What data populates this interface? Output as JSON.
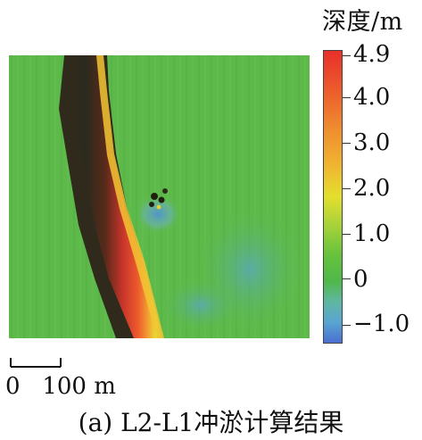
{
  "colorbar": {
    "title": "深度/m",
    "min": -1.3,
    "max": 5.0,
    "ticks": [
      {
        "value": 4.9,
        "label": "4.9"
      },
      {
        "value": 4.0,
        "label": "4.0"
      },
      {
        "value": 3.0,
        "label": "3.0"
      },
      {
        "value": 2.0,
        "label": "2.0"
      },
      {
        "value": 1.0,
        "label": "1.0"
      },
      {
        "value": 0,
        "label": "0"
      },
      {
        "value": -1.0,
        "label": "−1.0"
      }
    ],
    "colors": [
      "#e8302a",
      "#f1b430",
      "#e3df2e",
      "#4fb84a",
      "#58a5d2",
      "#4b6fd1"
    ]
  },
  "scale": {
    "label": "0   100 m"
  },
  "caption": "(a) L2-L1冲淤计算结果"
}
